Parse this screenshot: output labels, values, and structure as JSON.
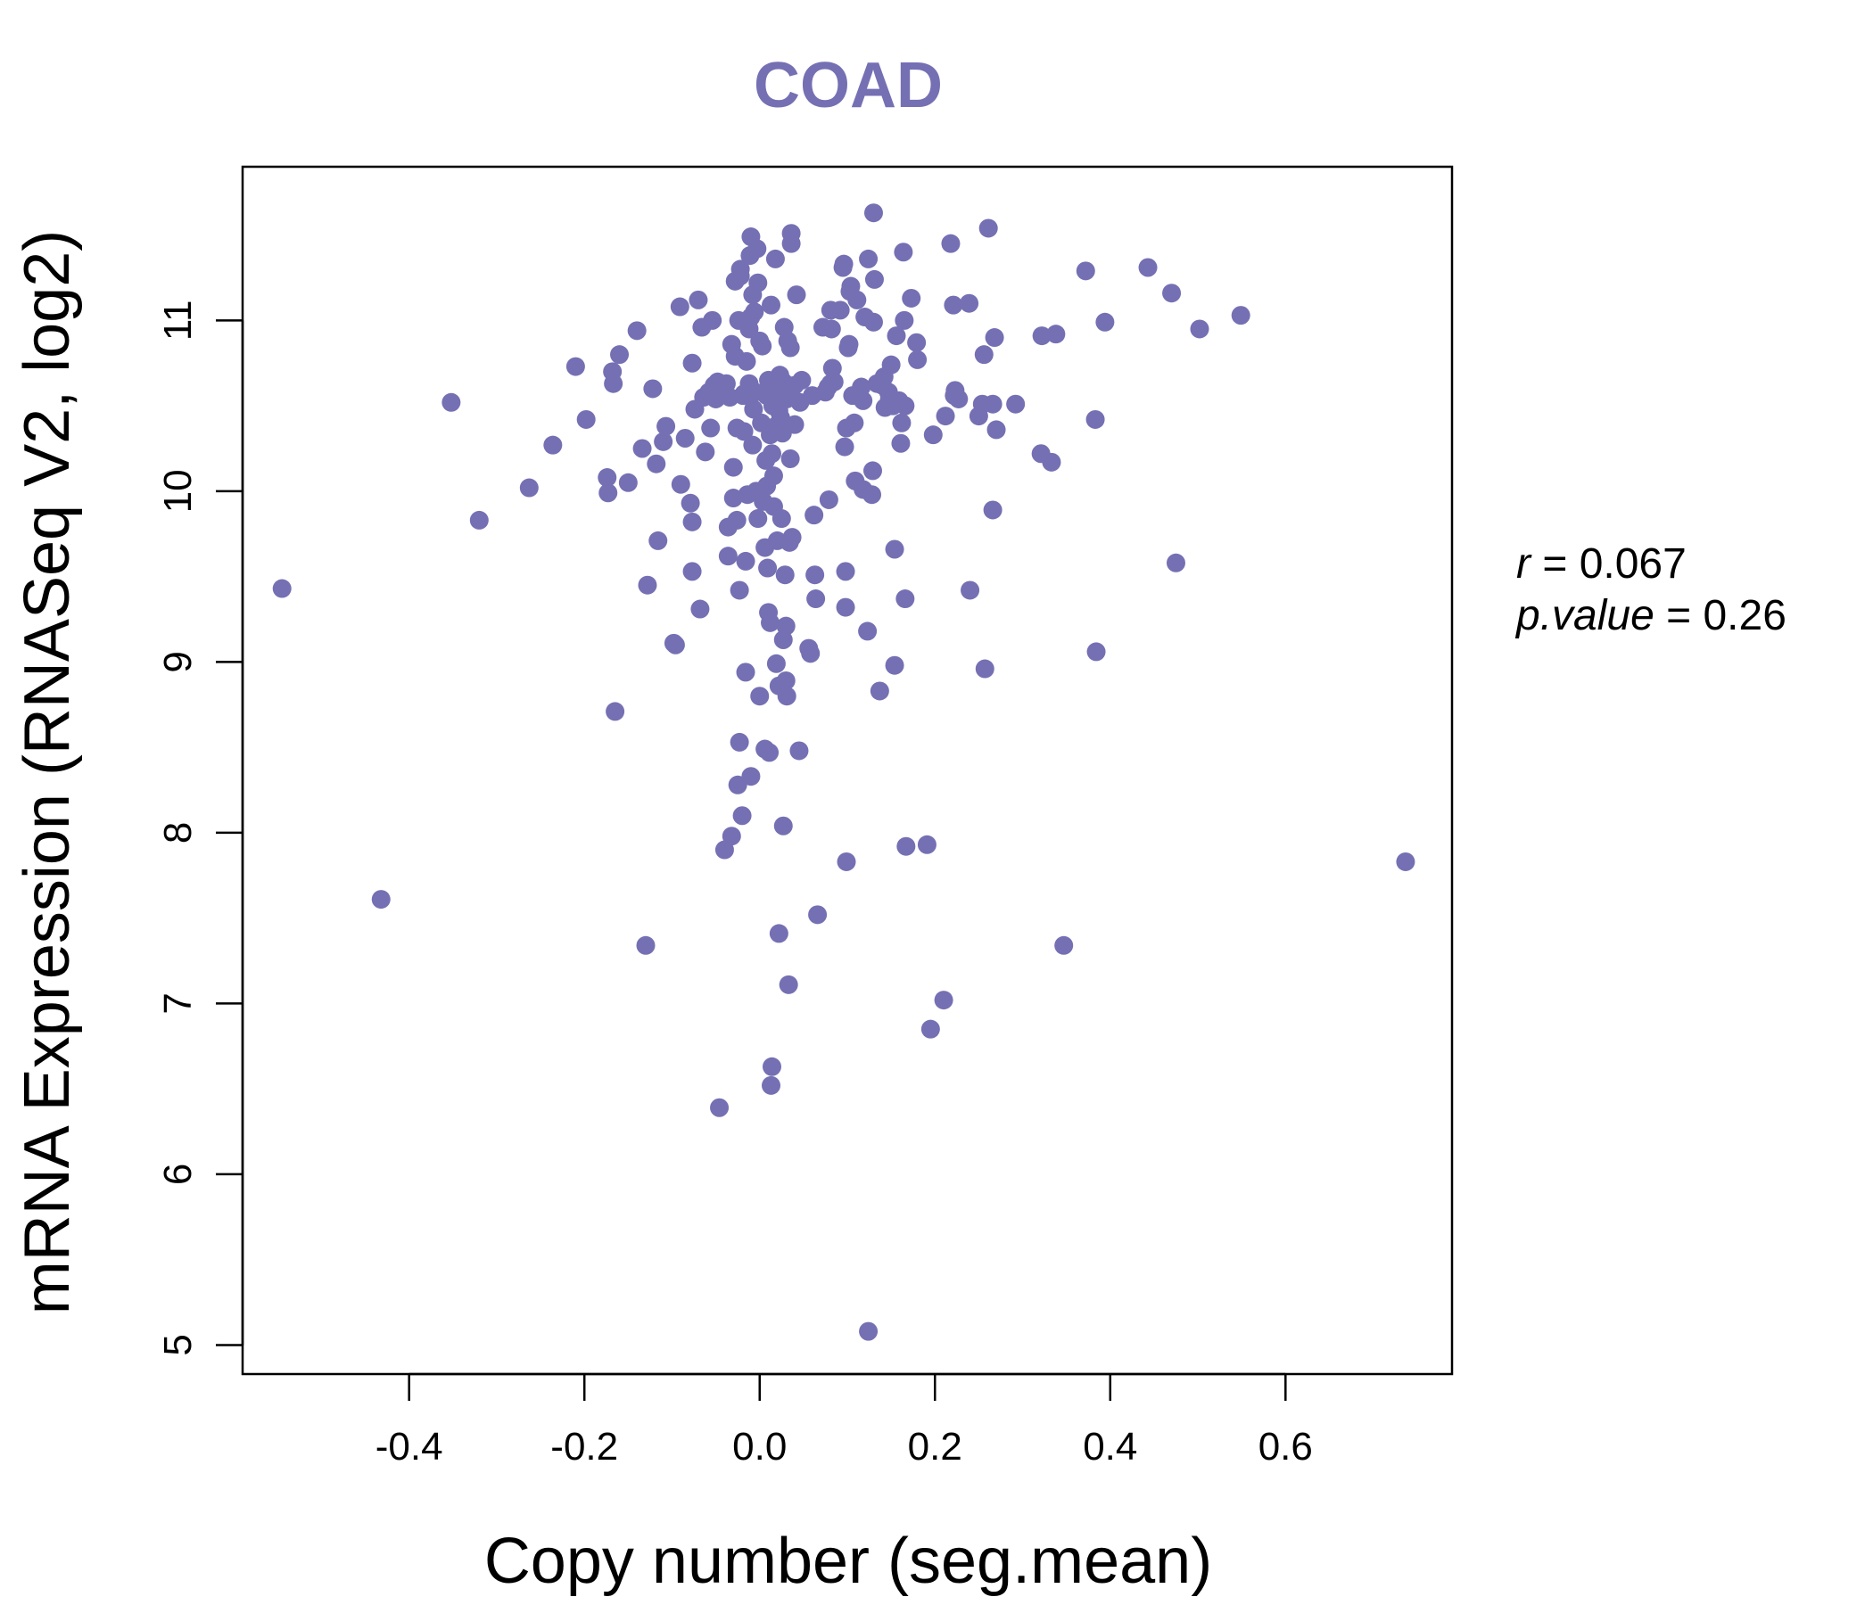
{
  "chart_data": {
    "type": "scatter",
    "title": "COAD",
    "xlabel": "Copy number (seg.mean)",
    "ylabel": "mRNA Expression (RNASeq V2, log2)",
    "xlim": [
      -0.59,
      0.79
    ],
    "ylim": [
      4.83,
      11.9
    ],
    "xticks": [
      -0.4,
      -0.2,
      0.0,
      0.2,
      0.4,
      0.6
    ],
    "xtick_labels": [
      "-0.4",
      "-0.2",
      "0.0",
      "0.2",
      "0.4",
      "0.6"
    ],
    "yticks": [
      5,
      6,
      7,
      8,
      9,
      10,
      11
    ],
    "ytick_labels": [
      "5",
      "6",
      "7",
      "8",
      "9",
      "10",
      "11"
    ],
    "grid": false,
    "legend": "none",
    "point_color": "#7570B3",
    "title_color": "#7570B3",
    "stats": {
      "r_label": "r",
      "r_value": "0.067",
      "p_label": "p.value",
      "p_value": "0.26"
    },
    "points": [
      [
        -0.545,
        9.43
      ],
      [
        -0.432,
        7.61
      ],
      [
        -0.352,
        10.52
      ],
      [
        -0.32,
        9.83
      ],
      [
        -0.263,
        10.02
      ],
      [
        -0.236,
        10.27
      ],
      [
        -0.21,
        10.73
      ],
      [
        -0.198,
        10.42
      ],
      [
        -0.174,
        10.08
      ],
      [
        -0.173,
        9.99
      ],
      [
        -0.168,
        10.7
      ],
      [
        -0.167,
        10.63
      ],
      [
        -0.165,
        8.71
      ],
      [
        -0.16,
        10.8
      ],
      [
        -0.15,
        10.05
      ],
      [
        -0.14,
        10.94
      ],
      [
        -0.134,
        10.25
      ],
      [
        -0.13,
        7.34
      ],
      [
        -0.128,
        9.45
      ],
      [
        -0.122,
        10.6
      ],
      [
        -0.118,
        10.16
      ],
      [
        -0.116,
        9.71
      ],
      [
        -0.11,
        10.29
      ],
      [
        -0.107,
        10.38
      ],
      [
        -0.098,
        9.11
      ],
      [
        -0.096,
        9.1
      ],
      [
        -0.091,
        11.08
      ],
      [
        -0.09,
        10.04
      ],
      [
        -0.085,
        10.31
      ],
      [
        -0.079,
        9.93
      ],
      [
        -0.077,
        9.82
      ],
      [
        -0.077,
        9.53
      ],
      [
        -0.077,
        10.75
      ],
      [
        -0.074,
        10.48
      ],
      [
        -0.07,
        11.12
      ],
      [
        -0.068,
        9.31
      ],
      [
        -0.066,
        10.96
      ],
      [
        -0.064,
        10.55
      ],
      [
        -0.062,
        10.23
      ],
      [
        -0.058,
        10.58
      ],
      [
        -0.056,
        10.37
      ],
      [
        -0.054,
        11.0
      ],
      [
        -0.052,
        10.62
      ],
      [
        -0.05,
        10.54
      ],
      [
        -0.048,
        10.64
      ],
      [
        -0.046,
        6.39
      ],
      [
        -0.044,
        10.57
      ],
      [
        -0.042,
        10.6
      ],
      [
        -0.04,
        7.9
      ],
      [
        -0.038,
        10.63
      ],
      [
        -0.036,
        9.79
      ],
      [
        -0.036,
        9.62
      ],
      [
        -0.034,
        10.55
      ],
      [
        -0.032,
        10.86
      ],
      [
        -0.032,
        7.98
      ],
      [
        -0.03,
        9.96
      ],
      [
        -0.03,
        10.14
      ],
      [
        -0.028,
        10.79
      ],
      [
        -0.028,
        11.23
      ],
      [
        -0.026,
        10.37
      ],
      [
        -0.026,
        9.83
      ],
      [
        -0.025,
        8.28
      ],
      [
        -0.024,
        11.0
      ],
      [
        -0.023,
        8.53
      ],
      [
        -0.023,
        9.42
      ],
      [
        -0.022,
        11.26
      ],
      [
        -0.022,
        11.3
      ],
      [
        -0.02,
        8.1
      ],
      [
        -0.019,
        10.56
      ],
      [
        -0.018,
        10.35
      ],
      [
        -0.018,
        10.57
      ],
      [
        -0.016,
        8.94
      ],
      [
        -0.016,
        9.59
      ],
      [
        -0.015,
        10.76
      ],
      [
        -0.014,
        9.98
      ],
      [
        -0.012,
        10.95
      ],
      [
        -0.012,
        10.63
      ],
      [
        -0.011,
        11.38
      ],
      [
        -0.01,
        11.49
      ],
      [
        -0.01,
        11.02
      ],
      [
        -0.01,
        8.33
      ],
      [
        -0.008,
        11.15
      ],
      [
        -0.008,
        10.27
      ],
      [
        -0.007,
        10.48
      ],
      [
        -0.006,
        11.05
      ],
      [
        -0.005,
        10.58
      ],
      [
        -0.004,
        10.0
      ],
      [
        -0.003,
        11.42
      ],
      [
        -0.002,
        9.84
      ],
      [
        -0.002,
        11.22
      ],
      [
        0.0,
        10.88
      ],
      [
        0.0,
        8.8
      ],
      [
        0.002,
        10.4
      ],
      [
        0.003,
        10.85
      ],
      [
        0.004,
        9.94
      ],
      [
        0.006,
        9.67
      ],
      [
        0.006,
        8.49
      ],
      [
        0.007,
        10.18
      ],
      [
        0.008,
        10.56
      ],
      [
        0.008,
        10.03
      ],
      [
        0.009,
        9.55
      ],
      [
        0.01,
        10.65
      ],
      [
        0.01,
        9.29
      ],
      [
        0.011,
        8.47
      ],
      [
        0.012,
        9.23
      ],
      [
        0.012,
        10.33
      ],
      [
        0.013,
        11.09
      ],
      [
        0.013,
        6.52
      ],
      [
        0.013,
        10.64
      ],
      [
        0.014,
        10.22
      ],
      [
        0.014,
        6.63
      ],
      [
        0.015,
        10.5
      ],
      [
        0.016,
        10.52
      ],
      [
        0.016,
        10.09
      ],
      [
        0.016,
        9.91
      ],
      [
        0.018,
        10.38
      ],
      [
        0.018,
        11.36
      ],
      [
        0.019,
        10.65
      ],
      [
        0.019,
        8.99
      ],
      [
        0.02,
        10.59
      ],
      [
        0.02,
        9.71
      ],
      [
        0.021,
        10.66
      ],
      [
        0.022,
        8.86
      ],
      [
        0.022,
        10.47
      ],
      [
        0.022,
        7.41
      ],
      [
        0.023,
        10.68
      ],
      [
        0.024,
        10.43
      ],
      [
        0.025,
        9.84
      ],
      [
        0.026,
        10.34
      ],
      [
        0.026,
        10.56
      ],
      [
        0.027,
        9.13
      ],
      [
        0.027,
        8.04
      ],
      [
        0.027,
        10.64
      ],
      [
        0.028,
        10.96
      ],
      [
        0.029,
        9.51
      ],
      [
        0.03,
        9.21
      ],
      [
        0.03,
        8.89
      ],
      [
        0.031,
        10.54
      ],
      [
        0.031,
        8.8
      ],
      [
        0.032,
        10.88
      ],
      [
        0.033,
        7.11
      ],
      [
        0.034,
        9.7
      ],
      [
        0.035,
        10.84
      ],
      [
        0.035,
        10.19
      ],
      [
        0.036,
        11.45
      ],
      [
        0.036,
        11.51
      ],
      [
        0.037,
        9.73
      ],
      [
        0.04,
        10.39
      ],
      [
        0.04,
        10.62
      ],
      [
        0.042,
        11.15
      ],
      [
        0.045,
        8.48
      ],
      [
        0.046,
        10.52
      ],
      [
        0.048,
        10.65
      ],
      [
        0.056,
        9.08
      ],
      [
        0.058,
        9.05
      ],
      [
        0.06,
        10.56
      ],
      [
        0.062,
        9.86
      ],
      [
        0.063,
        9.51
      ],
      [
        0.064,
        9.37
      ],
      [
        0.066,
        7.52
      ],
      [
        0.072,
        10.96
      ],
      [
        0.075,
        10.58
      ],
      [
        0.078,
        10.61
      ],
      [
        0.079,
        9.95
      ],
      [
        0.081,
        10.63
      ],
      [
        0.081,
        11.06
      ],
      [
        0.082,
        10.95
      ],
      [
        0.083,
        10.72
      ],
      [
        0.085,
        10.64
      ],
      [
        0.092,
        11.06
      ],
      [
        0.095,
        11.31
      ],
      [
        0.096,
        11.33
      ],
      [
        0.097,
        10.26
      ],
      [
        0.098,
        9.53
      ],
      [
        0.098,
        9.32
      ],
      [
        0.099,
        10.37
      ],
      [
        0.099,
        7.83
      ],
      [
        0.101,
        10.84
      ],
      [
        0.102,
        10.86
      ],
      [
        0.103,
        11.17
      ],
      [
        0.104,
        11.2
      ],
      [
        0.106,
        10.56
      ],
      [
        0.108,
        10.4
      ],
      [
        0.109,
        10.06
      ],
      [
        0.111,
        11.12
      ],
      [
        0.116,
        10.61
      ],
      [
        0.118,
        10.01
      ],
      [
        0.118,
        10.53
      ],
      [
        0.12,
        11.02
      ],
      [
        0.123,
        9.18
      ],
      [
        0.124,
        11.36
      ],
      [
        0.124,
        5.08
      ],
      [
        0.128,
        9.98
      ],
      [
        0.129,
        10.12
      ],
      [
        0.13,
        10.99
      ],
      [
        0.13,
        11.63
      ],
      [
        0.131,
        11.24
      ],
      [
        0.134,
        10.63
      ],
      [
        0.137,
        8.83
      ],
      [
        0.14,
        10.62
      ],
      [
        0.142,
        10.67
      ],
      [
        0.143,
        10.49
      ],
      [
        0.147,
        10.58
      ],
      [
        0.148,
        10.54
      ],
      [
        0.15,
        10.74
      ],
      [
        0.152,
        10.5
      ],
      [
        0.154,
        9.66
      ],
      [
        0.154,
        8.98
      ],
      [
        0.156,
        10.91
      ],
      [
        0.159,
        10.53
      ],
      [
        0.161,
        10.28
      ],
      [
        0.162,
        10.4
      ],
      [
        0.164,
        11.4
      ],
      [
        0.165,
        11.0
      ],
      [
        0.166,
        10.5
      ],
      [
        0.166,
        9.37
      ],
      [
        0.167,
        7.92
      ],
      [
        0.173,
        11.13
      ],
      [
        0.179,
        10.87
      ],
      [
        0.18,
        10.77
      ],
      [
        0.191,
        7.93
      ],
      [
        0.195,
        6.85
      ],
      [
        0.198,
        10.33
      ],
      [
        0.21,
        7.02
      ],
      [
        0.212,
        10.44
      ],
      [
        0.218,
        11.45
      ],
      [
        0.221,
        11.09
      ],
      [
        0.222,
        10.56
      ],
      [
        0.223,
        10.59
      ],
      [
        0.227,
        10.54
      ],
      [
        0.239,
        11.1
      ],
      [
        0.24,
        9.42
      ],
      [
        0.25,
        10.44
      ],
      [
        0.254,
        10.51
      ],
      [
        0.256,
        10.8
      ],
      [
        0.257,
        8.96
      ],
      [
        0.261,
        11.54
      ],
      [
        0.266,
        10.51
      ],
      [
        0.266,
        9.89
      ],
      [
        0.268,
        10.9
      ],
      [
        0.27,
        10.36
      ],
      [
        0.292,
        10.51
      ],
      [
        0.321,
        10.22
      ],
      [
        0.322,
        10.91
      ],
      [
        0.333,
        10.17
      ],
      [
        0.338,
        10.92
      ],
      [
        0.347,
        7.34
      ],
      [
        0.372,
        11.29
      ],
      [
        0.383,
        10.42
      ],
      [
        0.384,
        9.06
      ],
      [
        0.394,
        10.99
      ],
      [
        0.443,
        11.31
      ],
      [
        0.47,
        11.16
      ],
      [
        0.475,
        9.58
      ],
      [
        0.502,
        10.95
      ],
      [
        0.549,
        11.03
      ],
      [
        0.737,
        7.83
      ]
    ]
  }
}
